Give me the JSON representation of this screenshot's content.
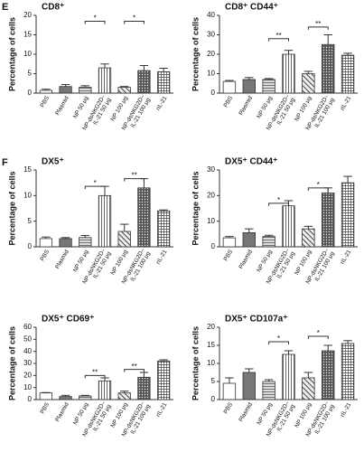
{
  "panel_labels": [
    "E",
    "F"
  ],
  "chart_data": [
    {
      "type": "bar",
      "title": "CD8⁺",
      "ylabel": "Percentage of cells",
      "categories": [
        "PBS",
        "Plasmid",
        "NP 50 μg",
        "NP-dsNKG2D–\nIL-21 50 μg",
        "NP 100 μg",
        "NP-dsNKG2D–\nIL-21 100 μg",
        "rIL-21"
      ],
      "values": [
        0.7,
        1.7,
        1.5,
        6.5,
        1.5,
        5.8,
        5.5
      ],
      "errors": [
        0.3,
        0.5,
        0.4,
        1.0,
        0.2,
        1.3,
        0.9
      ],
      "patterns": [
        "none",
        "solid",
        "horizontal",
        "vertical",
        "diagonal",
        "dots",
        "grid"
      ],
      "color": "#333333",
      "ylim": [
        0,
        20
      ],
      "yticks": [
        0,
        5,
        10,
        15,
        20
      ],
      "significance": [
        {
          "from": 2,
          "to": 3,
          "y": 18.5,
          "label": "*"
        },
        {
          "from": 4,
          "to": 5,
          "y": 18.5,
          "label": "*"
        }
      ]
    },
    {
      "type": "bar",
      "title": "CD8⁺ CD44⁺",
      "ylabel": "Percentage of cells",
      "categories": [
        "PBS",
        "Plasmid",
        "NP 50 μg",
        "NP-dsNKG2D–\nIL-21 50 μg",
        "NP 100 μg",
        "NP-dsNKG2D–\nIL-21 100 μg",
        "rIL-21"
      ],
      "values": [
        6,
        7,
        7,
        20,
        10,
        25,
        19.5
      ],
      "errors": [
        0.5,
        1,
        0.5,
        2,
        1.2,
        5,
        1
      ],
      "patterns": [
        "none",
        "solid",
        "horizontal",
        "vertical",
        "diagonal",
        "dots",
        "grid"
      ],
      "color": "#333333",
      "ylim": [
        0,
        40
      ],
      "yticks": [
        0,
        10,
        20,
        30,
        40
      ],
      "significance": [
        {
          "from": 2,
          "to": 3,
          "y": 28,
          "label": "**"
        },
        {
          "from": 4,
          "to": 5,
          "y": 34,
          "label": "**"
        }
      ]
    },
    {
      "type": "bar",
      "title": "DX5⁺",
      "ylabel": "Percentage of cells",
      "categories": [
        "PBS",
        "Plasmid",
        "NP 50 μg",
        "NP-dsNKG2D–\nIL-21 50 μg",
        "NP 100 μg",
        "NP-dsNKG2D–\nIL-21 100 μg",
        "rIL-21"
      ],
      "values": [
        1.6,
        1.6,
        1.8,
        10,
        3,
        11.5,
        7
      ],
      "errors": [
        0.3,
        0.2,
        0.4,
        1.8,
        1.4,
        1.8,
        0.2
      ],
      "patterns": [
        "none",
        "solid",
        "horizontal",
        "vertical",
        "diagonal",
        "dots",
        "grid"
      ],
      "color": "#333333",
      "ylim": [
        0,
        15
      ],
      "yticks": [
        0,
        5,
        10,
        15
      ],
      "significance": [
        {
          "from": 2,
          "to": 3,
          "y": 11.8,
          "label": "*"
        },
        {
          "from": 4,
          "to": 5,
          "y": 13.3,
          "label": "**"
        }
      ]
    },
    {
      "type": "bar",
      "title": "DX5⁺ CD44⁺",
      "ylabel": "Percentage of cells",
      "categories": [
        "PBS",
        "Plasmid",
        "NP 50 μg",
        "NP-dsNKG2D–\nIL-21 50 μg",
        "NP 100 μg",
        "NP-dsNKG2D–\nIL-21 100 μg",
        "rIL-21"
      ],
      "values": [
        3.5,
        5.5,
        4,
        16,
        7,
        21,
        25
      ],
      "errors": [
        0.5,
        1.5,
        0.5,
        2,
        1,
        2,
        2.5
      ],
      "patterns": [
        "none",
        "solid",
        "horizontal",
        "vertical",
        "diagonal",
        "dots",
        "grid"
      ],
      "color": "#333333",
      "ylim": [
        0,
        30
      ],
      "yticks": [
        0,
        10,
        20,
        30
      ],
      "significance": [
        {
          "from": 2,
          "to": 3,
          "y": 17,
          "label": "*"
        },
        {
          "from": 4,
          "to": 5,
          "y": 23,
          "label": "*"
        }
      ]
    },
    {
      "type": "bar",
      "title": "DX5⁺ CD69⁺",
      "ylabel": "Percentage of cells",
      "categories": [
        "PBS",
        "Plasmid",
        "NP 50 μg",
        "NP-dsNKG2D–\nIL-21 50 μg",
        "NP 100 μg",
        "NP-dsNKG2D–\nIL-21 100 μg",
        "rIL-21"
      ],
      "values": [
        5.5,
        2.5,
        3,
        15.5,
        5.5,
        18.5,
        32
      ],
      "errors": [
        0.3,
        1,
        0.5,
        2.5,
        1.5,
        4,
        1
      ],
      "patterns": [
        "none",
        "solid",
        "horizontal",
        "vertical",
        "diagonal",
        "dots",
        "grid"
      ],
      "color": "#333333",
      "ylim": [
        0,
        60
      ],
      "yticks": [
        0,
        10,
        20,
        30,
        40,
        50,
        60
      ],
      "significance": [
        {
          "from": 2,
          "to": 3,
          "y": 20,
          "label": "**"
        },
        {
          "from": 4,
          "to": 5,
          "y": 25,
          "label": "**"
        }
      ]
    },
    {
      "type": "bar",
      "title": "DX5⁺ CD107a⁺",
      "ylabel": "Percentage of cells",
      "categories": [
        "PBS",
        "Plasmid",
        "NP 50 μg",
        "NP-dsNKG2D–\nIL-21 50 μg",
        "NP 100 μg",
        "NP-dsNKG2D–\nIL-21 100 μg",
        "rIL-21"
      ],
      "values": [
        4.5,
        7.5,
        5,
        12.5,
        6,
        13.5,
        15.5
      ],
      "errors": [
        1.5,
        1,
        0.5,
        1,
        1.5,
        1.5,
        0.8
      ],
      "patterns": [
        "none",
        "solid",
        "horizontal",
        "vertical",
        "diagonal",
        "dots",
        "grid"
      ],
      "color": "#333333",
      "ylim": [
        0,
        20
      ],
      "yticks": [
        0,
        5,
        10,
        15,
        20
      ],
      "significance": [
        {
          "from": 2,
          "to": 3,
          "y": 16,
          "label": "*"
        },
        {
          "from": 4,
          "to": 5,
          "y": 17.5,
          "label": "*"
        }
      ]
    }
  ]
}
